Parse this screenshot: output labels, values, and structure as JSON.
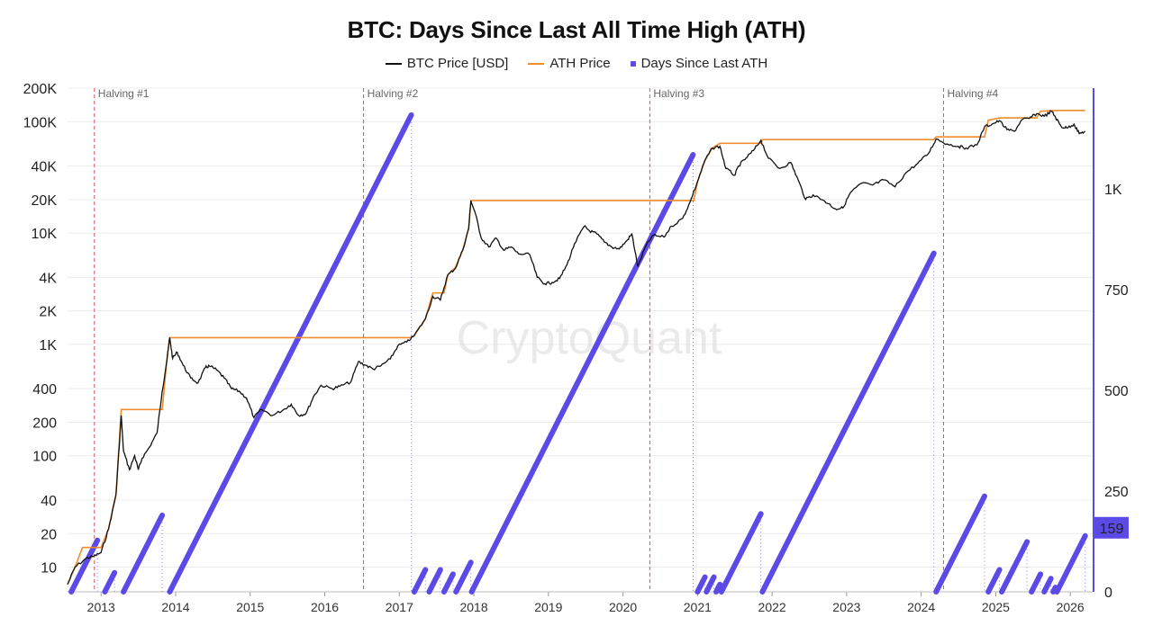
{
  "title": "BTC: Days Since Last All Time High (ATH)",
  "watermark": "CryptoQuant",
  "colors": {
    "btc": "#111111",
    "ath": "#f08c2a",
    "days": "#5b4ae6",
    "halving": "#d9534f",
    "badge": "#5b4ae6",
    "grid": "#ececec"
  },
  "chart_data": {
    "type": "line",
    "title": "BTC: Days Since Last All Time High (ATH)",
    "legend": {
      "position": "top-center",
      "entries": [
        "BTC Price [USD]",
        "ATH Price",
        "Days Since Last ATH"
      ]
    },
    "x_axis": {
      "ticks": [
        "2013",
        "2014",
        "2015",
        "2016",
        "2017",
        "2018",
        "2019",
        "2020",
        "2021",
        "2022",
        "2023",
        "2024",
        "2025",
        "2026"
      ],
      "range": [
        "2012-07",
        "2026-03"
      ]
    },
    "y_left": {
      "scale": "log",
      "ticks": [
        "200K",
        "100K",
        "40K",
        "20K",
        "10K",
        "4K",
        "2K",
        "1K",
        "400",
        "200",
        "100",
        "40",
        "20",
        "10"
      ],
      "tick_values": [
        200000,
        100000,
        40000,
        20000,
        10000,
        4000,
        2000,
        1000,
        400,
        200,
        100,
        40,
        20,
        10
      ],
      "range": [
        6,
        200000
      ]
    },
    "y_right": {
      "scale": "linear",
      "ticks": [
        "1K",
        "750",
        "500",
        "250",
        "0"
      ],
      "tick_values": [
        1000,
        750,
        500,
        250,
        0
      ],
      "range": [
        0,
        1250
      ]
    },
    "halvings": [
      {
        "label": "Halving #1",
        "date": 2012.91
      },
      {
        "label": "Halving #2",
        "date": 2016.52
      },
      {
        "label": "Halving #3",
        "date": 2020.36
      },
      {
        "label": "Halving #4",
        "date": 2024.3
      }
    ],
    "series": [
      {
        "name": "BTC Price [USD]",
        "axis": "left",
        "points": [
          [
            2012.55,
            7
          ],
          [
            2012.65,
            10
          ],
          [
            2012.8,
            12
          ],
          [
            2012.9,
            12.5
          ],
          [
            2013.0,
            13.5
          ],
          [
            2013.1,
            22
          ],
          [
            2013.2,
            45
          ],
          [
            2013.27,
            230
          ],
          [
            2013.3,
            110
          ],
          [
            2013.38,
            75
          ],
          [
            2013.45,
            100
          ],
          [
            2013.5,
            75
          ],
          [
            2013.55,
            95
          ],
          [
            2013.65,
            120
          ],
          [
            2013.75,
            160
          ],
          [
            2013.82,
            380
          ],
          [
            2013.88,
            700
          ],
          [
            2013.92,
            1150
          ],
          [
            2013.96,
            750
          ],
          [
            2014.02,
            850
          ],
          [
            2014.1,
            650
          ],
          [
            2014.2,
            500
          ],
          [
            2014.3,
            450
          ],
          [
            2014.4,
            620
          ],
          [
            2014.45,
            640
          ],
          [
            2014.55,
            590
          ],
          [
            2014.65,
            500
          ],
          [
            2014.75,
            400
          ],
          [
            2014.85,
            380
          ],
          [
            2014.95,
            330
          ],
          [
            2015.05,
            220
          ],
          [
            2015.15,
            260
          ],
          [
            2015.3,
            230
          ],
          [
            2015.45,
            260
          ],
          [
            2015.55,
            290
          ],
          [
            2015.65,
            230
          ],
          [
            2015.75,
            240
          ],
          [
            2015.85,
            340
          ],
          [
            2015.95,
            430
          ],
          [
            2016.1,
            400
          ],
          [
            2016.2,
            420
          ],
          [
            2016.35,
            460
          ],
          [
            2016.45,
            700
          ],
          [
            2016.55,
            650
          ],
          [
            2016.65,
            600
          ],
          [
            2016.75,
            640
          ],
          [
            2016.88,
            740
          ],
          [
            2016.98,
            970
          ],
          [
            2017.1,
            1050
          ],
          [
            2017.2,
            1200
          ],
          [
            2017.35,
            1700
          ],
          [
            2017.45,
            2700
          ],
          [
            2017.55,
            2500
          ],
          [
            2017.65,
            4200
          ],
          [
            2017.75,
            4800
          ],
          [
            2017.85,
            7000
          ],
          [
            2017.93,
            11000
          ],
          [
            2017.96,
            19500
          ],
          [
            2018.02,
            15000
          ],
          [
            2018.1,
            9000
          ],
          [
            2018.2,
            7500
          ],
          [
            2018.3,
            9000
          ],
          [
            2018.4,
            7000
          ],
          [
            2018.5,
            7500
          ],
          [
            2018.6,
            6500
          ],
          [
            2018.75,
            6400
          ],
          [
            2018.85,
            4000
          ],
          [
            2018.95,
            3500
          ],
          [
            2019.05,
            3600
          ],
          [
            2019.15,
            3900
          ],
          [
            2019.25,
            5200
          ],
          [
            2019.35,
            8000
          ],
          [
            2019.48,
            11500
          ],
          [
            2019.55,
            10500
          ],
          [
            2019.65,
            9800
          ],
          [
            2019.75,
            8300
          ],
          [
            2019.85,
            7500
          ],
          [
            2019.95,
            7200
          ],
          [
            2020.05,
            8500
          ],
          [
            2020.12,
            9800
          ],
          [
            2020.2,
            5000
          ],
          [
            2020.3,
            7500
          ],
          [
            2020.4,
            9500
          ],
          [
            2020.55,
            9200
          ],
          [
            2020.65,
            11500
          ],
          [
            2020.8,
            13500
          ],
          [
            2020.9,
            19000
          ],
          [
            2021.0,
            29000
          ],
          [
            2021.1,
            45000
          ],
          [
            2021.2,
            58000
          ],
          [
            2021.3,
            60000
          ],
          [
            2021.38,
            38000
          ],
          [
            2021.5,
            33000
          ],
          [
            2021.55,
            40000
          ],
          [
            2021.65,
            47000
          ],
          [
            2021.75,
            55000
          ],
          [
            2021.85,
            68000
          ],
          [
            2021.95,
            47000
          ],
          [
            2022.1,
            38000
          ],
          [
            2022.25,
            43000
          ],
          [
            2022.35,
            30000
          ],
          [
            2022.45,
            20000
          ],
          [
            2022.55,
            22000
          ],
          [
            2022.7,
            19500
          ],
          [
            2022.85,
            16500
          ],
          [
            2022.95,
            16800
          ],
          [
            2023.05,
            23000
          ],
          [
            2023.2,
            28000
          ],
          [
            2023.35,
            27000
          ],
          [
            2023.5,
            30000
          ],
          [
            2023.65,
            26000
          ],
          [
            2023.8,
            35000
          ],
          [
            2023.95,
            42000
          ],
          [
            2024.1,
            52000
          ],
          [
            2024.2,
            70000
          ],
          [
            2024.35,
            63000
          ],
          [
            2024.5,
            60000
          ],
          [
            2024.6,
            58000
          ],
          [
            2024.75,
            62000
          ],
          [
            2024.85,
            90000
          ],
          [
            2024.95,
            95000
          ],
          [
            2025.05,
            102000
          ],
          [
            2025.15,
            85000
          ],
          [
            2025.25,
            82000
          ],
          [
            2025.35,
            104000
          ],
          [
            2025.45,
            107000
          ],
          [
            2025.55,
            118000
          ],
          [
            2025.65,
            112000
          ],
          [
            2025.75,
            124000
          ],
          [
            2025.8,
            110000
          ],
          [
            2025.88,
            90000
          ],
          [
            2025.95,
            88000
          ],
          [
            2026.05,
            95000
          ],
          [
            2026.12,
            78000
          ],
          [
            2026.2,
            82000
          ]
        ]
      },
      {
        "name": "ATH Price",
        "axis": "left",
        "points": [
          [
            2012.55,
            7
          ],
          [
            2012.65,
            10
          ],
          [
            2012.75,
            15
          ],
          [
            2012.8,
            15
          ],
          [
            2013.0,
            15
          ],
          [
            2013.1,
            22
          ],
          [
            2013.2,
            45
          ],
          [
            2013.27,
            260
          ],
          [
            2013.82,
            260
          ],
          [
            2013.88,
            700
          ],
          [
            2013.92,
            1150
          ],
          [
            2017.16,
            1150
          ],
          [
            2017.2,
            1200
          ],
          [
            2017.35,
            1700
          ],
          [
            2017.45,
            2900
          ],
          [
            2017.6,
            2900
          ],
          [
            2017.65,
            4200
          ],
          [
            2017.75,
            4900
          ],
          [
            2017.85,
            7000
          ],
          [
            2017.93,
            11000
          ],
          [
            2017.96,
            19600
          ],
          [
            2020.95,
            19600
          ],
          [
            2021.0,
            29000
          ],
          [
            2021.1,
            45000
          ],
          [
            2021.2,
            58000
          ],
          [
            2021.3,
            64000
          ],
          [
            2021.85,
            64000
          ],
          [
            2021.87,
            69000
          ],
          [
            2024.17,
            69000
          ],
          [
            2024.2,
            73000
          ],
          [
            2024.85,
            73000
          ],
          [
            2024.9,
            103000
          ],
          [
            2025.05,
            108000
          ],
          [
            2025.55,
            108000
          ],
          [
            2025.6,
            124000
          ],
          [
            2025.8,
            126000
          ],
          [
            2026.2,
            126000
          ]
        ]
      },
      {
        "name": "Days Since Last ATH",
        "axis": "right",
        "segments": [
          [
            2012.6,
            2012.95
          ],
          [
            2013.05,
            2013.18
          ],
          [
            2013.3,
            2013.82
          ],
          [
            2013.92,
            2017.16
          ],
          [
            2017.2,
            2017.35
          ],
          [
            2017.4,
            2017.55
          ],
          [
            2017.6,
            2017.72
          ],
          [
            2017.76,
            2017.96
          ],
          [
            2017.97,
            2020.94
          ],
          [
            2021.0,
            2021.1
          ],
          [
            2021.12,
            2021.22
          ],
          [
            2021.25,
            2021.3
          ],
          [
            2021.32,
            2021.85
          ],
          [
            2021.87,
            2024.17
          ],
          [
            2024.2,
            2024.85
          ],
          [
            2024.9,
            2025.05
          ],
          [
            2025.08,
            2025.42
          ],
          [
            2025.48,
            2025.6
          ],
          [
            2025.65,
            2025.74
          ],
          [
            2025.77,
            2025.8
          ],
          [
            2025.82,
            2026.2
          ]
        ]
      }
    ],
    "current_value_badge": "159"
  }
}
